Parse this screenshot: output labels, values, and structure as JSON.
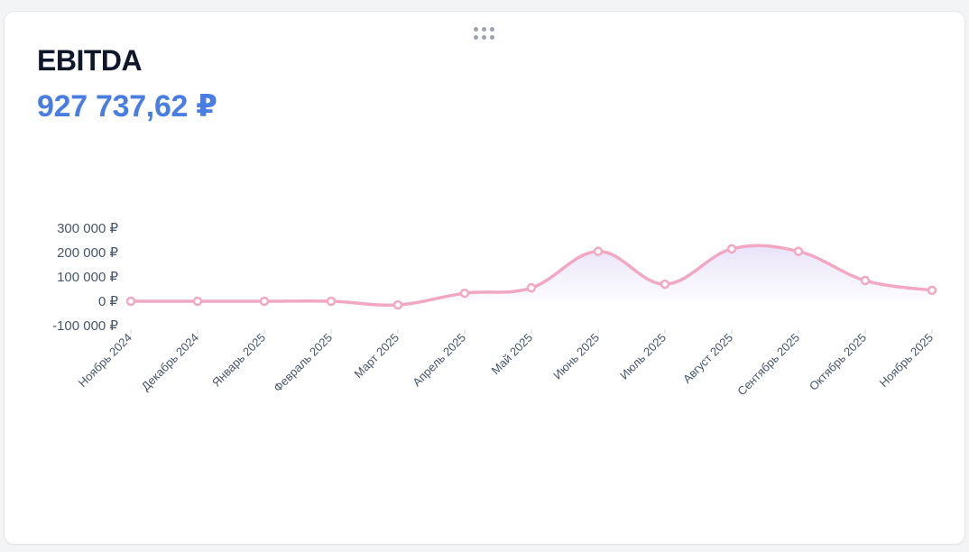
{
  "widget": {
    "title": "EBITDA",
    "total_value": "927 737,62 ₽"
  },
  "icons": {
    "drag_handle": "drag-handle-icon"
  },
  "colors": {
    "line": "#f2a7c3",
    "value": "#4a7de3",
    "area_top": "#ebe6fa"
  },
  "chart_data": {
    "type": "area",
    "title": "",
    "xlabel": "",
    "ylabel": "",
    "ylim": [
      -100000,
      300000
    ],
    "yticks": [
      -100000,
      0,
      100000,
      200000,
      300000
    ],
    "ytick_labels": [
      "-100 000 ₽",
      "0 ₽",
      "100 000 ₽",
      "200 000 ₽",
      "300 000 ₽"
    ],
    "grid": false,
    "categories": [
      "Ноябрь 2024",
      "Декабрь 2024",
      "Январь 2025",
      "Февраль 2025",
      "Март 2025",
      "Апрель 2025",
      "Май 2025",
      "Июнь 2025",
      "Июль 2025",
      "Август 2025",
      "Сентябрь 2025",
      "Октябрь 2025",
      "Ноябрь 2025"
    ],
    "values": [
      0,
      0,
      0,
      0,
      -15000,
      33000,
      55000,
      205000,
      70000,
      215000,
      205000,
      85000,
      45000
    ]
  }
}
